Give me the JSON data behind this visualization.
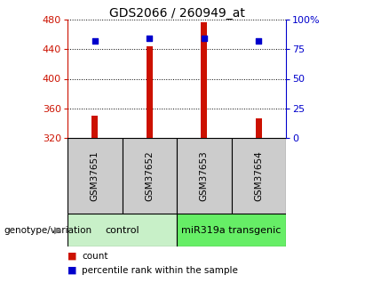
{
  "title": "GDS2066 / 260949_at",
  "samples": [
    "GSM37651",
    "GSM37652",
    "GSM37653",
    "GSM37654"
  ],
  "counts": [
    350,
    444,
    476,
    347
  ],
  "percentile_ranks": [
    82,
    84,
    84,
    82
  ],
  "y_min": 320,
  "y_max": 480,
  "y_ticks": [
    320,
    360,
    400,
    440,
    480
  ],
  "right_y_ticks": [
    0,
    25,
    50,
    75,
    100
  ],
  "right_y_tick_labels": [
    "0",
    "25",
    "50",
    "75",
    "100%"
  ],
  "groups": [
    {
      "label": "control",
      "samples_idx": [
        0,
        1
      ],
      "color": "#c8f0c8"
    },
    {
      "label": "miR319a transgenic",
      "samples_idx": [
        2,
        3
      ],
      "color": "#66ee66"
    }
  ],
  "bar_color": "#cc1100",
  "dot_color": "#0000cc",
  "left_y_color": "#cc1100",
  "right_y_color": "#0000cc",
  "sample_box_color": "#cccccc",
  "legend_items": [
    "count",
    "percentile rank within the sample"
  ],
  "genotype_label": "genotype/variation"
}
